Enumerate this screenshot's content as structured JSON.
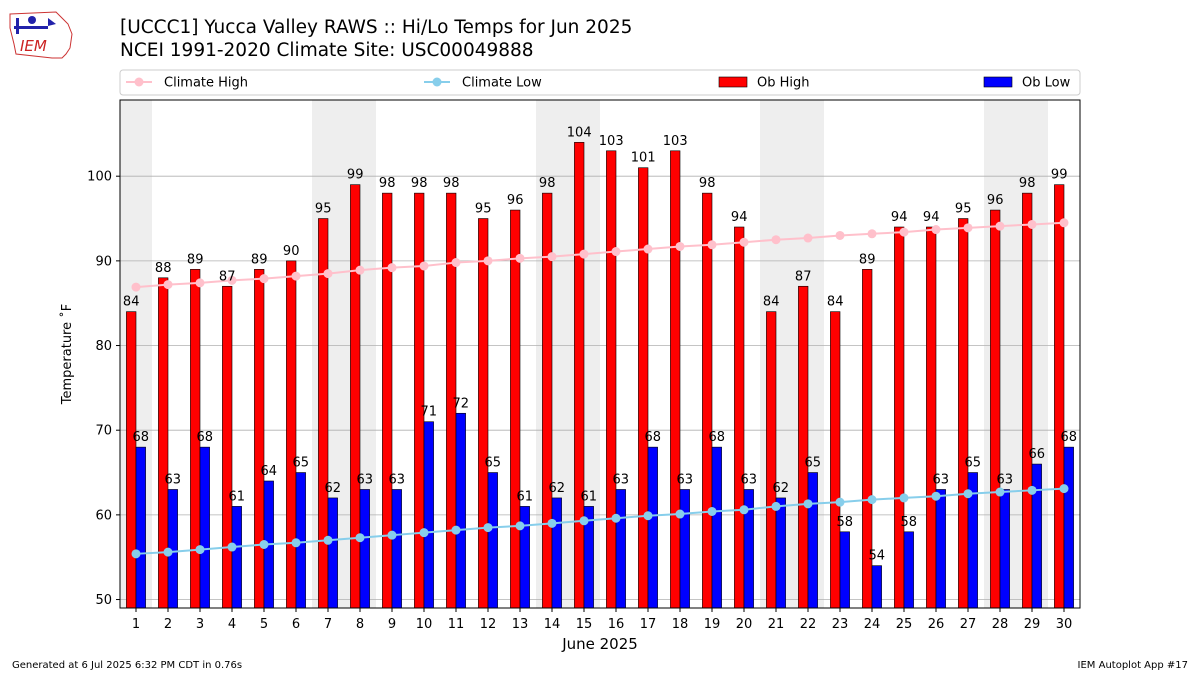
{
  "header": {
    "title_line1": "[UCCC1] Yucca Valley RAWS :: Hi/Lo Temps for Jun 2025",
    "title_line2": "NCEI 1991-2020 Climate Site: USC00049888",
    "logo_text": "IEM"
  },
  "footer": {
    "generated": "Generated at 6 Jul 2025 6:32 PM CDT in 0.76s",
    "app": "IEM Autoplot App #17"
  },
  "colors": {
    "ob_high": "#ff0000",
    "ob_low": "#0000ff",
    "climate_high": "#ffc0cb",
    "climate_low": "#87ceeb",
    "weekend_band": "#eeeeee",
    "grid": "#b0b0b0"
  },
  "chart_data": {
    "type": "bar",
    "xlabel": "June 2025",
    "ylabel": "Temperature ˚F",
    "ylim": [
      49,
      109
    ],
    "yticks": [
      50,
      60,
      70,
      80,
      90,
      100
    ],
    "grid": "horizontal",
    "legend_position": "top",
    "weekend_days": [
      1,
      7,
      8,
      14,
      15,
      21,
      22,
      28,
      29
    ],
    "categories": [
      "1",
      "2",
      "3",
      "4",
      "5",
      "6",
      "7",
      "8",
      "9",
      "10",
      "11",
      "12",
      "13",
      "14",
      "15",
      "16",
      "17",
      "18",
      "19",
      "20",
      "21",
      "22",
      "23",
      "24",
      "25",
      "26",
      "27",
      "28",
      "29",
      "30"
    ],
    "series": [
      {
        "name": "Ob High",
        "type": "bar",
        "color": "#ff0000",
        "values": [
          84,
          88,
          89,
          87,
          89,
          90,
          95,
          99,
          98,
          98,
          98,
          95,
          96,
          98,
          104,
          103,
          101,
          103,
          98,
          94,
          84,
          87,
          84,
          89,
          94,
          94,
          95,
          96,
          98,
          99
        ]
      },
      {
        "name": "Ob Low",
        "type": "bar",
        "color": "#0000ff",
        "values": [
          68,
          63,
          68,
          61,
          64,
          65,
          62,
          63,
          63,
          71,
          72,
          65,
          61,
          62,
          61,
          63,
          68,
          63,
          68,
          63,
          62,
          65,
          58,
          54,
          58,
          63,
          65,
          63,
          66,
          68
        ]
      },
      {
        "name": "Climate High",
        "type": "line",
        "color": "#ffc0cb",
        "values": [
          86.9,
          87.2,
          87.4,
          87.7,
          87.9,
          88.2,
          88.5,
          88.9,
          89.2,
          89.4,
          89.8,
          90.0,
          90.3,
          90.5,
          90.8,
          91.1,
          91.4,
          91.7,
          91.9,
          92.2,
          92.5,
          92.7,
          93.0,
          93.2,
          93.4,
          93.7,
          93.9,
          94.1,
          94.3,
          94.5
        ]
      },
      {
        "name": "Climate Low",
        "type": "line",
        "color": "#87ceeb",
        "values": [
          55.4,
          55.6,
          55.9,
          56.2,
          56.5,
          56.7,
          57.0,
          57.3,
          57.6,
          57.9,
          58.2,
          58.5,
          58.7,
          59.0,
          59.3,
          59.6,
          59.9,
          60.1,
          60.4,
          60.6,
          61.0,
          61.3,
          61.5,
          61.8,
          62.0,
          62.2,
          62.5,
          62.7,
          62.9,
          63.1
        ]
      }
    ]
  }
}
